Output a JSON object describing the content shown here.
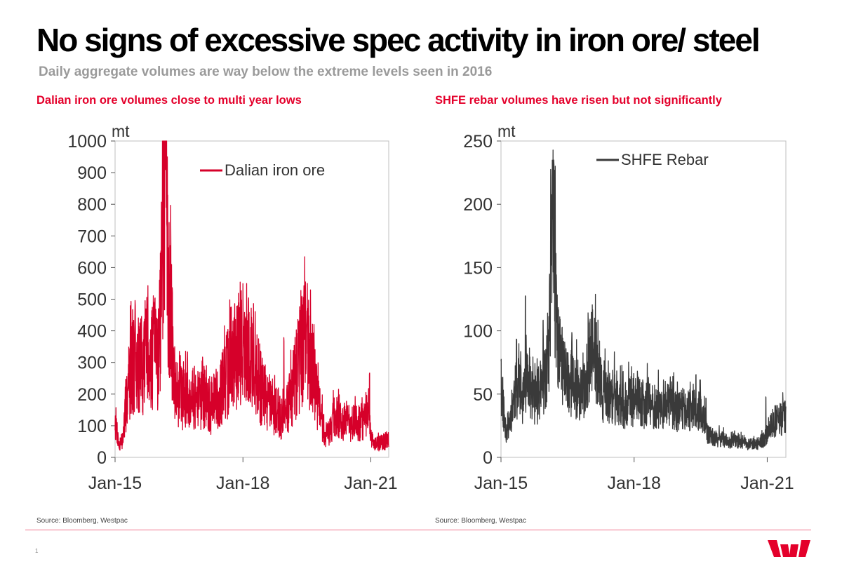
{
  "slide": {
    "title": "No signs of excessive spec activity in iron ore/ steel",
    "subtitle": "Daily aggregate volumes are way below the extreme levels seen in 2016",
    "page_number": "1",
    "logo_name": "westpac-logo-icon",
    "brand_color": "#e4002b"
  },
  "chart_data": [
    {
      "type": "line",
      "title": "Dalian iron ore volumes close to multi year lows",
      "unit_label": "mt",
      "xlabel": "",
      "ylabel": "mt",
      "x_start": 2015.0,
      "x_end": 2021.42,
      "x_ticks": [
        2015,
        2018,
        2021
      ],
      "x_tick_labels": [
        "Jan-15",
        "Jan-18",
        "Jan-21"
      ],
      "ylim": [
        0,
        1000
      ],
      "y_ticks": [
        0,
        100,
        200,
        300,
        400,
        500,
        600,
        700,
        800,
        900,
        1000
      ],
      "grid": false,
      "legend_position": "top-right",
      "series": [
        {
          "name": "Dalian iron ore",
          "color": "#d6002a",
          "noise_seed": 7,
          "noise_amplitude": 0.55,
          "anchors": [
            [
              2015.0,
              120
            ],
            [
              2015.05,
              80
            ],
            [
              2015.1,
              30
            ],
            [
              2015.18,
              60
            ],
            [
              2015.25,
              160
            ],
            [
              2015.33,
              250
            ],
            [
              2015.42,
              300
            ],
            [
              2015.5,
              260
            ],
            [
              2015.58,
              310
            ],
            [
              2015.66,
              280
            ],
            [
              2015.75,
              330
            ],
            [
              2015.83,
              300
            ],
            [
              2015.92,
              340
            ],
            [
              2016.0,
              320
            ],
            [
              2016.06,
              420
            ],
            [
              2016.12,
              620
            ],
            [
              2016.16,
              860
            ],
            [
              2016.19,
              940
            ],
            [
              2016.23,
              620
            ],
            [
              2016.3,
              460
            ],
            [
              2016.37,
              280
            ],
            [
              2016.45,
              210
            ],
            [
              2016.55,
              190
            ],
            [
              2016.65,
              200
            ],
            [
              2016.75,
              170
            ],
            [
              2016.85,
              190
            ],
            [
              2016.95,
              175
            ],
            [
              2017.05,
              200
            ],
            [
              2017.15,
              170
            ],
            [
              2017.25,
              150
            ],
            [
              2017.35,
              185
            ],
            [
              2017.45,
              200
            ],
            [
              2017.55,
              230
            ],
            [
              2017.65,
              270
            ],
            [
              2017.75,
              300
            ],
            [
              2017.85,
              330
            ],
            [
              2017.92,
              380
            ],
            [
              2018.0,
              340
            ],
            [
              2018.1,
              300
            ],
            [
              2018.2,
              320
            ],
            [
              2018.3,
              260
            ],
            [
              2018.4,
              230
            ],
            [
              2018.5,
              200
            ],
            [
              2018.6,
              170
            ],
            [
              2018.7,
              140
            ],
            [
              2018.8,
              160
            ],
            [
              2018.9,
              120
            ],
            [
              2019.0,
              140
            ],
            [
              2019.1,
              180
            ],
            [
              2019.2,
              230
            ],
            [
              2019.3,
              290
            ],
            [
              2019.4,
              360
            ],
            [
              2019.48,
              380
            ],
            [
              2019.55,
              320
            ],
            [
              2019.65,
              260
            ],
            [
              2019.75,
              180
            ],
            [
              2019.85,
              120
            ],
            [
              2019.95,
              60
            ],
            [
              2020.05,
              90
            ],
            [
              2020.15,
              130
            ],
            [
              2020.25,
              130
            ],
            [
              2020.35,
              110
            ],
            [
              2020.45,
              120
            ],
            [
              2020.55,
              100
            ],
            [
              2020.65,
              120
            ],
            [
              2020.75,
              110
            ],
            [
              2020.85,
              110
            ],
            [
              2020.95,
              150
            ],
            [
              2021.0,
              60
            ],
            [
              2021.08,
              40
            ],
            [
              2021.18,
              45
            ],
            [
              2021.3,
              50
            ],
            [
              2021.42,
              55
            ]
          ],
          "spikes": [
            [
              2015.36,
              480
            ],
            [
              2015.47,
              500
            ],
            [
              2015.72,
              470
            ],
            [
              2015.98,
              450
            ],
            [
              2016.1,
              780
            ],
            [
              2016.17,
              1000
            ],
            [
              2016.215,
              740
            ],
            [
              2017.68,
              400
            ],
            [
              2017.88,
              470
            ],
            [
              2018.13,
              510
            ],
            [
              2018.96,
              380
            ],
            [
              2019.38,
              510
            ],
            [
              2019.5,
              470
            ],
            [
              2020.97,
              270
            ]
          ]
        }
      ]
    },
    {
      "type": "line",
      "title": "SHFE rebar volumes have risen but not significantly",
      "unit_label": "mt",
      "xlabel": "",
      "ylabel": "mt",
      "x_start": 2015.0,
      "x_end": 2021.42,
      "x_ticks": [
        2015,
        2018,
        2021
      ],
      "x_tick_labels": [
        "Jan-15",
        "Jan-18",
        "Jan-21"
      ],
      "ylim": [
        0,
        250
      ],
      "y_ticks": [
        0,
        50,
        100,
        150,
        200,
        250
      ],
      "grid": false,
      "legend_position": "top-right",
      "series": [
        {
          "name": "SHFE Rebar",
          "color": "#3a3a3a",
          "noise_seed": 11,
          "noise_amplitude": 0.45,
          "anchors": [
            [
              2015.0,
              55
            ],
            [
              2015.05,
              40
            ],
            [
              2015.1,
              18
            ],
            [
              2015.2,
              30
            ],
            [
              2015.3,
              50
            ],
            [
              2015.4,
              55
            ],
            [
              2015.5,
              45
            ],
            [
              2015.6,
              60
            ],
            [
              2015.7,
              50
            ],
            [
              2015.8,
              45
            ],
            [
              2015.9,
              55
            ],
            [
              2016.0,
              60
            ],
            [
              2016.08,
              80
            ],
            [
              2016.13,
              150
            ],
            [
              2016.17,
              195
            ],
            [
              2016.2,
              160
            ],
            [
              2016.25,
              100
            ],
            [
              2016.35,
              75
            ],
            [
              2016.45,
              65
            ],
            [
              2016.55,
              60
            ],
            [
              2016.65,
              55
            ],
            [
              2016.75,
              50
            ],
            [
              2016.85,
              50
            ],
            [
              2016.95,
              65
            ],
            [
              2017.05,
              85
            ],
            [
              2017.12,
              78
            ],
            [
              2017.2,
              60
            ],
            [
              2017.3,
              50
            ],
            [
              2017.4,
              45
            ],
            [
              2017.5,
              48
            ],
            [
              2017.6,
              45
            ],
            [
              2017.7,
              42
            ],
            [
              2017.8,
              40
            ],
            [
              2017.9,
              45
            ],
            [
              2018.0,
              42
            ],
            [
              2018.1,
              45
            ],
            [
              2018.2,
              40
            ],
            [
              2018.3,
              45
            ],
            [
              2018.4,
              40
            ],
            [
              2018.5,
              38
            ],
            [
              2018.6,
              42
            ],
            [
              2018.7,
              36
            ],
            [
              2018.8,
              40
            ],
            [
              2018.9,
              38
            ],
            [
              2019.0,
              36
            ],
            [
              2019.1,
              40
            ],
            [
              2019.2,
              38
            ],
            [
              2019.3,
              36
            ],
            [
              2019.4,
              38
            ],
            [
              2019.5,
              34
            ],
            [
              2019.6,
              30
            ],
            [
              2019.65,
              18
            ],
            [
              2019.75,
              16
            ],
            [
              2019.85,
              15
            ],
            [
              2019.95,
              14
            ],
            [
              2020.05,
              14
            ],
            [
              2020.15,
              12
            ],
            [
              2020.25,
              13
            ],
            [
              2020.35,
              11
            ],
            [
              2020.45,
              12
            ],
            [
              2020.55,
              10
            ],
            [
              2020.65,
              11
            ],
            [
              2020.75,
              10
            ],
            [
              2020.85,
              12
            ],
            [
              2020.95,
              15
            ],
            [
              2021.05,
              22
            ],
            [
              2021.15,
              28
            ],
            [
              2021.25,
              30
            ],
            [
              2021.35,
              32
            ],
            [
              2021.42,
              35
            ]
          ],
          "spikes": [
            [
              2015.0,
              78
            ],
            [
              2015.35,
              95
            ],
            [
              2015.55,
              130
            ],
            [
              2015.95,
              110
            ],
            [
              2016.12,
              228
            ],
            [
              2016.16,
              240
            ],
            [
              2016.19,
              235
            ],
            [
              2016.6,
              100
            ],
            [
              2016.97,
              110
            ],
            [
              2017.15,
              110
            ],
            [
              2017.75,
              70
            ],
            [
              2018.2,
              60
            ],
            [
              2019.62,
              48
            ],
            [
              2020.97,
              48
            ],
            [
              2021.4,
              45
            ]
          ]
        }
      ]
    }
  ],
  "sources": {
    "left": "Source: Bloomberg,  Westpac",
    "right": "Source: Bloomberg,  Westpac"
  }
}
